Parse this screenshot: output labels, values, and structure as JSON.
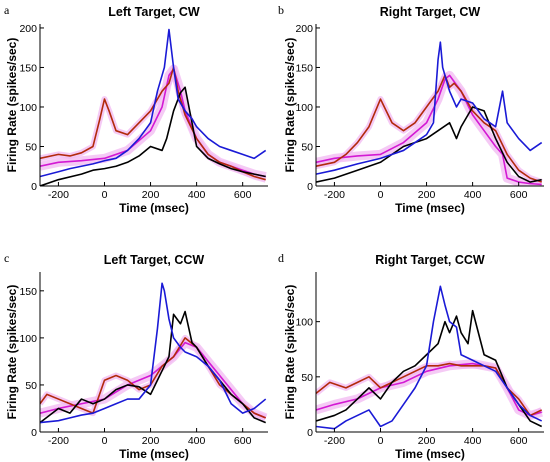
{
  "colors": {
    "blue": "#1a1ad6",
    "black": "#000000",
    "red": "#b22a0c",
    "magenta": "#d319d3",
    "pink_band": "#f2b8f2"
  },
  "chart_data": [
    {
      "panel_label": "a",
      "type": "line",
      "title": "Left Target, CW",
      "xlabel": "Time (msec)",
      "ylabel": "Firing Rate (spikes/sec)",
      "xlim": [
        -280,
        710
      ],
      "ylim": [
        0,
        205
      ],
      "xticks": [
        -200,
        0,
        200,
        400,
        600
      ],
      "yticks": [
        0,
        50,
        100,
        150,
        200
      ],
      "series": [
        {
          "color": "blue",
          "x": [
            -280,
            -200,
            -150,
            -100,
            -50,
            0,
            50,
            100,
            150,
            200,
            230,
            260,
            280,
            300,
            320,
            350,
            380,
            400,
            450,
            500,
            550,
            600,
            650,
            700
          ],
          "y": [
            12,
            18,
            22,
            25,
            28,
            32,
            35,
            45,
            60,
            80,
            120,
            150,
            198,
            150,
            110,
            95,
            85,
            75,
            60,
            50,
            45,
            40,
            35,
            45
          ]
        },
        {
          "color": "black",
          "x": [
            -280,
            -200,
            -100,
            -50,
            0,
            50,
            100,
            150,
            200,
            250,
            270,
            300,
            330,
            350,
            380,
            400,
            450,
            500,
            550,
            600,
            650,
            700
          ],
          "y": [
            0,
            8,
            15,
            20,
            22,
            25,
            30,
            38,
            50,
            45,
            60,
            95,
            118,
            125,
            80,
            50,
            35,
            28,
            22,
            18,
            15,
            12
          ]
        },
        {
          "color": "red",
          "x": [
            -280,
            -200,
            -150,
            -100,
            -50,
            -20,
            0,
            20,
            50,
            100,
            150,
            200,
            250,
            280,
            300,
            320,
            350,
            400,
            450,
            500,
            550,
            600,
            650,
            700
          ],
          "y": [
            35,
            40,
            38,
            42,
            50,
            85,
            110,
            95,
            70,
            65,
            80,
            95,
            120,
            130,
            150,
            120,
            90,
            60,
            40,
            30,
            25,
            18,
            12,
            8
          ]
        },
        {
          "color": "magenta",
          "x": [
            -280,
            -200,
            -100,
            0,
            100,
            200,
            250,
            280,
            300,
            330,
            350,
            400,
            450,
            500,
            550,
            600,
            650,
            700
          ],
          "y": [
            25,
            30,
            32,
            35,
            45,
            70,
            100,
            140,
            148,
            120,
            95,
            60,
            40,
            30,
            25,
            20,
            15,
            12
          ]
        }
      ]
    },
    {
      "panel_label": "b",
      "type": "line",
      "title": "Right Target, CW",
      "xlabel": "Time (msec)",
      "ylabel": "Firing Rate (spikes/sec)",
      "xlim": [
        -280,
        710
      ],
      "ylim": [
        0,
        205
      ],
      "xticks": [
        -200,
        0,
        200,
        400,
        600
      ],
      "yticks": [
        0,
        50,
        100,
        150,
        200
      ],
      "series": [
        {
          "color": "blue",
          "x": [
            -280,
            -200,
            -100,
            0,
            100,
            150,
            200,
            230,
            250,
            260,
            270,
            300,
            330,
            350,
            400,
            450,
            500,
            530,
            550,
            600,
            650,
            700
          ],
          "y": [
            15,
            20,
            28,
            35,
            45,
            55,
            65,
            80,
            160,
            182,
            150,
            120,
            100,
            110,
            105,
            85,
            75,
            120,
            80,
            60,
            45,
            55
          ]
        },
        {
          "color": "black",
          "x": [
            -280,
            -200,
            -100,
            0,
            50,
            100,
            150,
            200,
            250,
            300,
            330,
            350,
            400,
            450,
            500,
            550,
            600,
            650,
            700
          ],
          "y": [
            5,
            10,
            20,
            30,
            40,
            50,
            55,
            60,
            70,
            80,
            60,
            75,
            100,
            95,
            60,
            30,
            12,
            5,
            8
          ]
        },
        {
          "color": "red",
          "x": [
            -280,
            -200,
            -150,
            -100,
            -50,
            0,
            50,
            100,
            150,
            200,
            250,
            280,
            300,
            320,
            350,
            400,
            450,
            500,
            550,
            600,
            650,
            700
          ],
          "y": [
            25,
            30,
            40,
            55,
            75,
            110,
            80,
            70,
            80,
            100,
            120,
            140,
            125,
            130,
            120,
            95,
            80,
            70,
            40,
            20,
            10,
            5
          ]
        },
        {
          "color": "magenta",
          "x": [
            -280,
            -200,
            -100,
            0,
            100,
            200,
            250,
            280,
            300,
            350,
            400,
            450,
            500,
            530,
            550,
            600,
            650,
            700
          ],
          "y": [
            30,
            35,
            38,
            40,
            55,
            80,
            110,
            135,
            140,
            120,
            90,
            70,
            50,
            40,
            10,
            5,
            3,
            2
          ]
        }
      ]
    },
    {
      "panel_label": "c",
      "type": "line",
      "title": "Left Target, CCW",
      "xlabel": "Time (msec)",
      "ylabel": "Firing Rate (spikes/sec)",
      "xlim": [
        -280,
        710
      ],
      "ylim": [
        0,
        170
      ],
      "xticks": [
        -200,
        0,
        200,
        400,
        600
      ],
      "yticks": [
        0,
        50,
        100,
        150
      ],
      "series": [
        {
          "color": "blue",
          "x": [
            -280,
            -200,
            -150,
            -100,
            -50,
            0,
            50,
            100,
            150,
            200,
            230,
            250,
            260,
            280,
            300,
            330,
            350,
            400,
            450,
            500,
            550,
            600,
            650,
            700
          ],
          "y": [
            10,
            12,
            15,
            18,
            20,
            25,
            30,
            35,
            35,
            50,
            110,
            158,
            150,
            120,
            100,
            90,
            85,
            80,
            70,
            55,
            30,
            20,
            25,
            35
          ]
        },
        {
          "color": "black",
          "x": [
            -280,
            -200,
            -150,
            -100,
            -50,
            0,
            50,
            100,
            150,
            200,
            250,
            280,
            300,
            330,
            350,
            380,
            400,
            450,
            500,
            550,
            600,
            650,
            700
          ],
          "y": [
            10,
            25,
            20,
            35,
            30,
            35,
            45,
            50,
            48,
            40,
            65,
            80,
            125,
            115,
            128,
            95,
            90,
            70,
            55,
            40,
            30,
            15,
            10
          ]
        },
        {
          "color": "red",
          "x": [
            -280,
            -250,
            -200,
            -150,
            -100,
            -50,
            0,
            50,
            100,
            150,
            200,
            250,
            300,
            350,
            400,
            450,
            500,
            550,
            600,
            650,
            700
          ],
          "y": [
            30,
            40,
            35,
            30,
            25,
            20,
            55,
            60,
            55,
            45,
            50,
            70,
            80,
            100,
            90,
            70,
            50,
            40,
            30,
            20,
            15
          ]
        },
        {
          "color": "magenta",
          "x": [
            -280,
            -200,
            -100,
            0,
            100,
            200,
            250,
            300,
            350,
            400,
            450,
            500,
            550,
            600,
            650,
            700
          ],
          "y": [
            20,
            25,
            30,
            35,
            50,
            60,
            70,
            80,
            95,
            90,
            75,
            60,
            45,
            30,
            20,
            15
          ]
        }
      ]
    },
    {
      "panel_label": "d",
      "type": "line",
      "title": "Right Target, CCW",
      "xlabel": "Time (msec)",
      "ylabel": "Firing Rate (spikes/sec)",
      "xlim": [
        -280,
        710
      ],
      "ylim": [
        0,
        145
      ],
      "xticks": [
        -200,
        0,
        200,
        400,
        600
      ],
      "yticks": [
        0,
        50,
        100
      ],
      "series": [
        {
          "color": "blue",
          "x": [
            -280,
            -200,
            -150,
            -100,
            -50,
            0,
            50,
            100,
            150,
            200,
            230,
            260,
            280,
            300,
            330,
            350,
            400,
            450,
            500,
            550,
            600,
            650,
            700
          ],
          "y": [
            5,
            3,
            10,
            15,
            20,
            5,
            10,
            25,
            40,
            60,
            100,
            132,
            115,
            100,
            95,
            70,
            65,
            60,
            55,
            40,
            25,
            15,
            10
          ]
        },
        {
          "color": "black",
          "x": [
            -280,
            -200,
            -150,
            -100,
            -50,
            0,
            50,
            100,
            150,
            200,
            250,
            280,
            300,
            330,
            350,
            380,
            400,
            450,
            500,
            550,
            600,
            650,
            700
          ],
          "y": [
            10,
            15,
            20,
            30,
            40,
            30,
            45,
            55,
            60,
            70,
            80,
            100,
            90,
            105,
            90,
            80,
            110,
            70,
            65,
            40,
            25,
            10,
            5
          ]
        },
        {
          "color": "red",
          "x": [
            -280,
            -220,
            -150,
            -100,
            -50,
            0,
            50,
            100,
            150,
            200,
            250,
            300,
            350,
            400,
            450,
            500,
            550,
            600,
            650,
            700
          ],
          "y": [
            35,
            45,
            40,
            45,
            50,
            40,
            45,
            50,
            55,
            60,
            60,
            62,
            60,
            60,
            60,
            58,
            40,
            30,
            15,
            20
          ]
        },
        {
          "color": "magenta",
          "x": [
            -280,
            -200,
            -100,
            0,
            100,
            200,
            300,
            400,
            500,
            550,
            600,
            650,
            700
          ],
          "y": [
            20,
            25,
            30,
            40,
            45,
            55,
            60,
            62,
            58,
            40,
            20,
            15,
            18
          ]
        }
      ]
    }
  ]
}
